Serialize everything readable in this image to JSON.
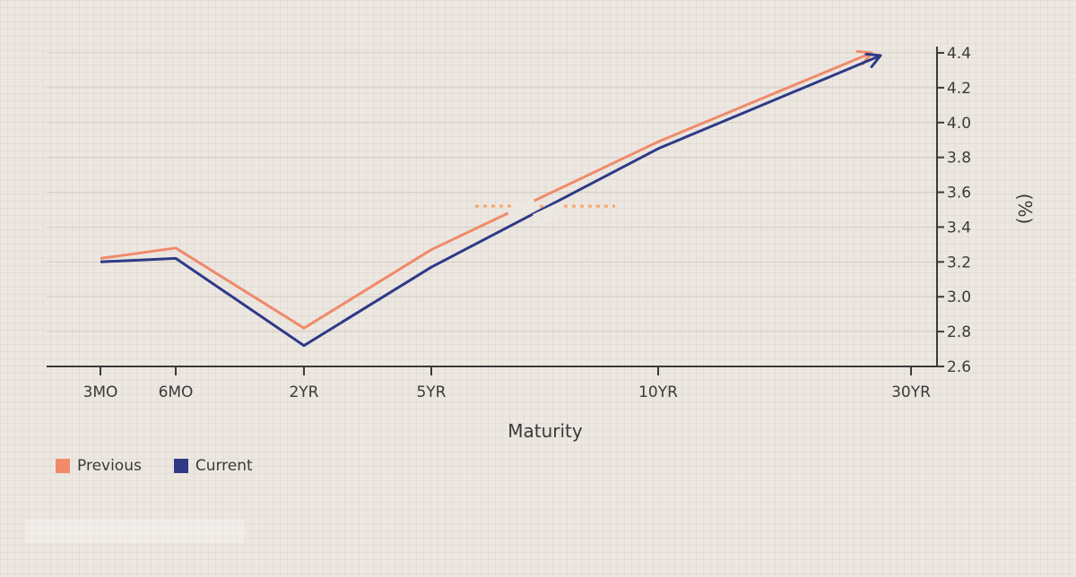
{
  "chart_data": {
    "type": "line",
    "categories": [
      "3MO",
      "6MO",
      "2YR",
      "5YR",
      "10YR",
      "30YR"
    ],
    "series": [
      {
        "name": "Previous",
        "color": "#f08a6b",
        "points": [
          {
            "x": "3MO",
            "y": 3.22
          },
          {
            "x": "6MO",
            "y": 3.28
          },
          {
            "x": "2YR",
            "y": 2.82
          },
          {
            "x": "5YR",
            "y": 3.27
          },
          {
            "x": "10YR",
            "y": 3.89
          },
          {
            "x": "30YR",
            "y": 4.4
          }
        ]
      },
      {
        "name": "Current",
        "color": "#2e3a87",
        "points": [
          {
            "x": "3MO",
            "y": 3.2
          },
          {
            "x": "6MO",
            "y": 3.22
          },
          {
            "x": "2YR",
            "y": 2.72
          },
          {
            "x": "5YR",
            "y": 3.17
          },
          {
            "x": "10YR",
            "y": 3.85
          },
          {
            "x": "30YR",
            "y": 4.38
          }
        ]
      }
    ],
    "xlabel": "Maturity",
    "ylabel": "(%)",
    "ylim": [
      2.6,
      4.4
    ],
    "yticks": [
      "2.6",
      "2.8",
      "3.0",
      "3.2",
      "3.4",
      "3.6",
      "3.8",
      "4.0",
      "4.2",
      "4.4"
    ],
    "reference_line": {
      "y": 3.52,
      "style": "dotted",
      "color": "#f5a86a"
    },
    "grid": true,
    "legend_position": "bottom-left"
  }
}
